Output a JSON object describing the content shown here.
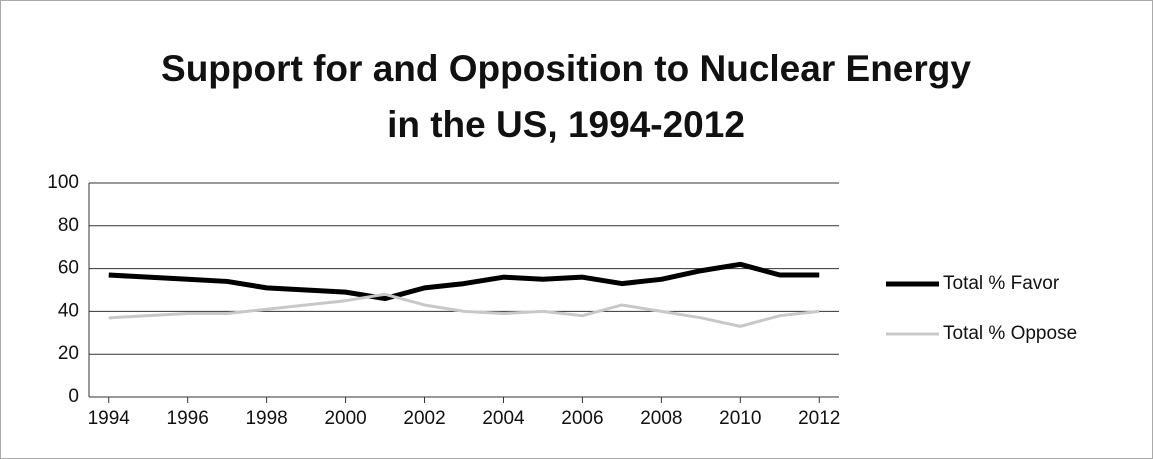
{
  "chart_data": {
    "type": "line",
    "title": "Support for and Opposition to Nuclear Energy in the US, 1994-2012",
    "x": [
      1994,
      1995,
      1996,
      1997,
      1998,
      1999,
      2000,
      2001,
      2002,
      2003,
      2004,
      2005,
      2006,
      2007,
      2008,
      2009,
      2010,
      2011,
      2012
    ],
    "series": [
      {
        "name": "Total % Favor",
        "color": "#000000",
        "values": [
          57,
          56,
          55,
          54,
          51,
          50,
          49,
          46,
          51,
          53,
          56,
          55,
          56,
          53,
          55,
          59,
          62,
          57,
          57
        ]
      },
      {
        "name": "Total % Oppose",
        "color": "#c8c8c8",
        "values": [
          37,
          38,
          39,
          39,
          41,
          43,
          45,
          48,
          43,
          40,
          39,
          40,
          38,
          43,
          40,
          37,
          33,
          38,
          40
        ]
      }
    ],
    "xlim": [
      1993.5,
      2012.5
    ],
    "xticks": [
      1994,
      1996,
      1998,
      2000,
      2002,
      2004,
      2006,
      2008,
      2010,
      2012
    ],
    "ylim": [
      0,
      100
    ],
    "yticks": [
      0,
      20,
      40,
      60,
      80,
      100
    ],
    "grid": true,
    "legend": "right"
  }
}
